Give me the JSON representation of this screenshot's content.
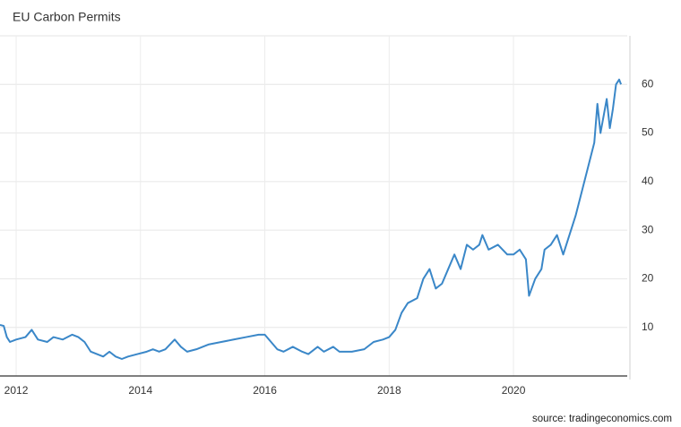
{
  "chart_data": {
    "type": "line",
    "title": "EU Carbon Permits",
    "source": "source: tradingeconomics.com",
    "x": [
      2011.74,
      2011.8,
      2011.85,
      2011.9,
      2012.0,
      2012.15,
      2012.25,
      2012.35,
      2012.5,
      2012.6,
      2012.75,
      2012.9,
      2013.0,
      2013.1,
      2013.2,
      2013.3,
      2013.4,
      2013.5,
      2013.6,
      2013.7,
      2013.8,
      2013.95,
      2014.1,
      2014.2,
      2014.3,
      2014.4,
      2014.55,
      2014.65,
      2014.75,
      2014.9,
      2015.1,
      2015.3,
      2015.5,
      2015.7,
      2015.9,
      2016.0,
      2016.1,
      2016.2,
      2016.3,
      2016.45,
      2016.6,
      2016.7,
      2016.85,
      2016.95,
      2017.1,
      2017.2,
      2017.4,
      2017.6,
      2017.75,
      2017.9,
      2018.0,
      2018.1,
      2018.2,
      2018.3,
      2018.45,
      2018.55,
      2018.65,
      2018.75,
      2018.85,
      2018.95,
      2019.05,
      2019.15,
      2019.25,
      2019.35,
      2019.45,
      2019.5,
      2019.6,
      2019.75,
      2019.9,
      2020.0,
      2020.1,
      2020.2,
      2020.25,
      2020.35,
      2020.45,
      2020.5,
      2020.6,
      2020.7,
      2020.8,
      2020.9,
      2021.0,
      2021.1,
      2021.2,
      2021.3,
      2021.35,
      2021.4,
      2021.5,
      2021.55,
      2021.6,
      2021.65,
      2021.7,
      2021.73
    ],
    "series": [
      {
        "name": "EU Carbon Permits",
        "color": "#3a87c8",
        "values": [
          10.5,
          10.3,
          8,
          7,
          7.5,
          8,
          9.5,
          7.5,
          7,
          8,
          7.5,
          8.5,
          8,
          7,
          5,
          4.5,
          4,
          5,
          4,
          3.5,
          4,
          4.5,
          5,
          5.5,
          5,
          5.5,
          7.5,
          6,
          5,
          5.5,
          6.5,
          7,
          7.5,
          8,
          8.5,
          8.5,
          7,
          5.5,
          5,
          6,
          5,
          4.5,
          6,
          5,
          6,
          5,
          5,
          5.5,
          7,
          7.5,
          8,
          9.5,
          13,
          15,
          16,
          20,
          22,
          18,
          19,
          22,
          25,
          22,
          27,
          26,
          27,
          29,
          26,
          27,
          25,
          25,
          26,
          24,
          16.5,
          20,
          22,
          26,
          27,
          29,
          25,
          29,
          33,
          38,
          43,
          48,
          56,
          50,
          57,
          51,
          55,
          60,
          61,
          60
        ]
      }
    ],
    "xlim": [
      2011.74,
      2021.83
    ],
    "xticks": [
      2012,
      2014,
      2016,
      2018,
      2020
    ],
    "ylim": [
      0,
      70
    ],
    "yticks": [
      10,
      20,
      30,
      40,
      50,
      60
    ],
    "grid": true
  }
}
